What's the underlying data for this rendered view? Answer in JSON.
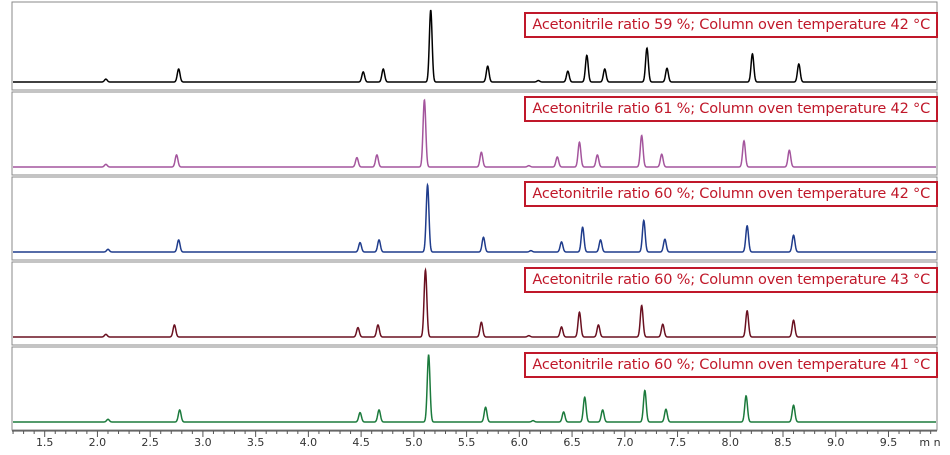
{
  "chart_data": {
    "type": "line",
    "title": "",
    "xlabel": "min",
    "x_unit_label": "m n",
    "xlim": [
      1.19,
      9.96
    ],
    "x_ticks": [
      "1.5",
      "2.0",
      "2.5",
      "3.0",
      "3.5",
      "4.0",
      "4.5",
      "5.0",
      "5.5",
      "6.0",
      "6.5",
      "7.0",
      "7.5",
      "8.0",
      "8.5",
      "9.0",
      "9.5"
    ],
    "relative_heights": [
      0.04,
      0.18,
      0.14,
      0.18,
      1.0,
      0.22,
      0.02,
      0.15,
      0.37,
      0.18,
      0.47,
      0.19,
      0.39,
      0.25
    ],
    "series": [
      {
        "name": "Acetonitrile ratio 59 %; Column oven temperature 42 °C",
        "color": "#000000",
        "peaks": [
          2.08,
          2.77,
          4.52,
          4.71,
          5.16,
          5.7,
          6.18,
          6.46,
          6.64,
          6.81,
          7.21,
          7.4,
          8.21,
          8.65
        ]
      },
      {
        "name": "Acetonitrile ratio 61 %; Column oven temperature 42 °C",
        "color": "#a4559d",
        "peaks": [
          2.08,
          2.75,
          4.46,
          4.65,
          5.1,
          5.64,
          6.09,
          6.36,
          6.57,
          6.74,
          7.16,
          7.35,
          8.13,
          8.56
        ]
      },
      {
        "name": "Acetonitrile ratio 60 %; Column oven temperature 42 °C",
        "color": "#1f3c8c",
        "peaks": [
          2.1,
          2.77,
          4.49,
          4.67,
          5.13,
          5.66,
          6.11,
          6.4,
          6.6,
          6.77,
          7.18,
          7.38,
          8.16,
          8.6
        ]
      },
      {
        "name": "Acetonitrile ratio 60 %; Column oven temperature 43 °C",
        "color": "#6a1020",
        "peaks": [
          2.08,
          2.73,
          4.47,
          4.66,
          5.11,
          5.64,
          6.09,
          6.4,
          6.57,
          6.75,
          7.16,
          7.36,
          8.16,
          8.6
        ]
      },
      {
        "name": "Acetonitrile ratio 60 %; Column oven temperature 41 °C",
        "color": "#1b7a3c",
        "peaks": [
          2.1,
          2.78,
          4.49,
          4.67,
          5.14,
          5.68,
          6.13,
          6.42,
          6.62,
          6.79,
          7.19,
          7.39,
          8.15,
          8.6
        ]
      }
    ]
  }
}
